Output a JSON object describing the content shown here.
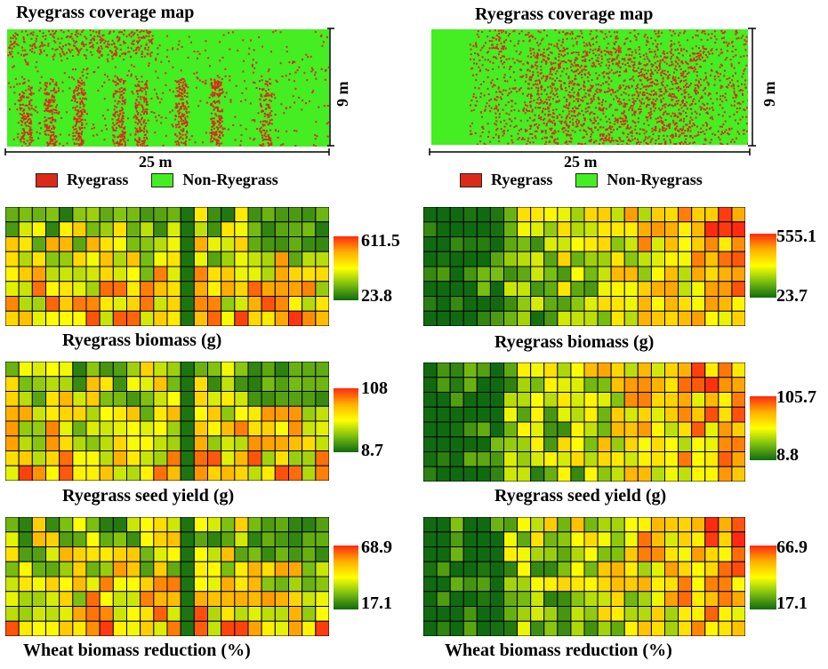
{
  "colors": {
    "ryegrass": "#dc2a1a",
    "non_ryegrass": "#44ee22"
  },
  "legend": {
    "ryegrass_label": "Ryegrass",
    "non_ryegrass_label": "Non-Ryegrass"
  },
  "panels": [
    {
      "coverage_title": "Ryegrass coverage map",
      "width_label": "25 m",
      "height_label": "9 m"
    },
    {
      "coverage_title": "Ryegrass coverage map",
      "width_label": "25 m",
      "height_label": "9 m"
    }
  ],
  "chart_data": [
    {
      "type": "heatmap",
      "title": "Ryegrass biomass (g)",
      "rows": 8,
      "cols": 24,
      "vmin": 23.8,
      "vmax": 611.5,
      "min_label": "23.8",
      "max_label": "611.5",
      "colormap": [
        "#106b10",
        "#7bbf10",
        "#ffff00",
        "#ffb000",
        "#ff2a10"
      ]
    },
    {
      "type": "heatmap",
      "title": "Ryegrass seed yield (g)",
      "rows": 8,
      "cols": 24,
      "vmin": 8.7,
      "vmax": 108,
      "min_label": "8.7",
      "max_label": "108",
      "colormap": [
        "#106b10",
        "#7bbf10",
        "#ffff00",
        "#ffb000",
        "#ff2a10"
      ]
    },
    {
      "type": "heatmap",
      "title": "Wheat biomass reduction (%)",
      "rows": 8,
      "cols": 24,
      "vmin": 17.1,
      "vmax": 68.9,
      "min_label": "17.1",
      "max_label": "68.9",
      "colormap": [
        "#106b10",
        "#7bbf10",
        "#ffff00",
        "#ffb000",
        "#ff2a10"
      ]
    },
    {
      "type": "heatmap",
      "title": "Ryegrass biomass (g)",
      "rows": 8,
      "cols": 24,
      "vmin": 23.7,
      "vmax": 555.1,
      "min_label": "23.7",
      "max_label": "555.1",
      "colormap": [
        "#106b10",
        "#7bbf10",
        "#ffff00",
        "#ffb000",
        "#ff2a10"
      ]
    },
    {
      "type": "heatmap",
      "title": "Ryegrass seed yield (g)",
      "rows": 8,
      "cols": 24,
      "vmin": 8.8,
      "vmax": 105.7,
      "min_label": "8.8",
      "max_label": "105.7",
      "colormap": [
        "#106b10",
        "#7bbf10",
        "#ffff00",
        "#ffb000",
        "#ff2a10"
      ]
    },
    {
      "type": "heatmap",
      "title": "Wheat biomass reduction (%)",
      "rows": 8,
      "cols": 24,
      "vmin": 17.1,
      "vmax": 66.9,
      "min_label": "17.1",
      "max_label": "66.9",
      "colormap": [
        "#106b10",
        "#7bbf10",
        "#ffff00",
        "#ffb000",
        "#ff2a10"
      ]
    }
  ]
}
